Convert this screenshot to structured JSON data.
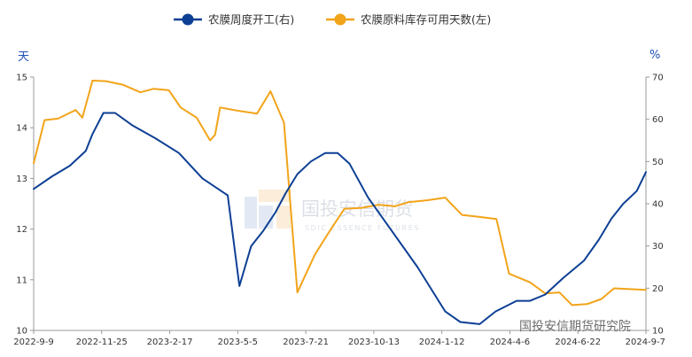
{
  "chart_data": {
    "type": "line",
    "left_axis": {
      "unit": "天",
      "ylim": [
        10,
        15
      ],
      "ticks": [
        "10",
        "11",
        "12",
        "13",
        "14",
        "15"
      ]
    },
    "right_axis": {
      "unit": "%",
      "ylim": [
        10,
        70
      ],
      "ticks": [
        "10",
        "20",
        "30",
        "40",
        "50",
        "60",
        "70"
      ]
    },
    "x_tick_labels": [
      "2022-9-9",
      "2022-11-25",
      "2023-2-17",
      "2023-5-5",
      "2023-7-21",
      "2023-10-13",
      "2024-1-12",
      "2024-4-6",
      "2024-6-22",
      "2024-9-7"
    ],
    "x_range": [
      "2022-09-09",
      "2024-09-07"
    ],
    "grid": false,
    "legend_position": "top-center",
    "series": [
      {
        "name": "农膜周度开工(右)",
        "axis": "right",
        "color": "#0d3f94",
        "points": [
          [
            "2022-09-09",
            43.5
          ],
          [
            "2022-10-01",
            46.5
          ],
          [
            "2022-10-22",
            49.0
          ],
          [
            "2022-11-10",
            52.5
          ],
          [
            "2022-11-18",
            56.5
          ],
          [
            "2022-12-01",
            61.5
          ],
          [
            "2022-12-15",
            61.5
          ],
          [
            "2023-01-05",
            58.5
          ],
          [
            "2023-02-01",
            55.5
          ],
          [
            "2023-03-01",
            52.0
          ],
          [
            "2023-03-29",
            46.0
          ],
          [
            "2023-04-28",
            42.0
          ],
          [
            "2023-05-12",
            20.5
          ],
          [
            "2023-05-26",
            30.0
          ],
          [
            "2023-06-09",
            33.5
          ],
          [
            "2023-06-24",
            38.0
          ],
          [
            "2023-07-06",
            42.5
          ],
          [
            "2023-07-20",
            47.0
          ],
          [
            "2023-08-05",
            50.0
          ],
          [
            "2023-08-22",
            52.0
          ],
          [
            "2023-09-06",
            52.0
          ],
          [
            "2023-09-20",
            49.5
          ],
          [
            "2023-10-12",
            41.5
          ],
          [
            "2023-11-06",
            34.5
          ],
          [
            "2023-12-10",
            25.0
          ],
          [
            "2024-01-12",
            14.5
          ],
          [
            "2024-01-30",
            12.0
          ],
          [
            "2024-02-22",
            11.5
          ],
          [
            "2024-03-12",
            14.5
          ],
          [
            "2024-04-06",
            17.0
          ],
          [
            "2024-04-22",
            17.0
          ],
          [
            "2024-05-10",
            18.5
          ],
          [
            "2024-06-01",
            22.5
          ],
          [
            "2024-06-25",
            26.5
          ],
          [
            "2024-07-13",
            31.5
          ],
          [
            "2024-07-28",
            36.5
          ],
          [
            "2024-08-11",
            40.0
          ],
          [
            "2024-08-27",
            43.0
          ],
          [
            "2024-09-07",
            47.5
          ]
        ]
      },
      {
        "name": "农膜原料库存可用天数(左)",
        "axis": "left",
        "color": "#f2a41a",
        "points": [
          [
            "2022-09-09",
            13.3
          ],
          [
            "2022-09-22",
            14.15
          ],
          [
            "2022-10-08",
            14.18
          ],
          [
            "2022-10-29",
            14.35
          ],
          [
            "2022-11-06",
            14.2
          ],
          [
            "2022-11-18",
            14.93
          ],
          [
            "2022-12-04",
            14.92
          ],
          [
            "2022-12-24",
            14.85
          ],
          [
            "2023-01-14",
            14.7
          ],
          [
            "2023-01-30",
            14.77
          ],
          [
            "2023-02-17",
            14.74
          ],
          [
            "2023-03-03",
            14.4
          ],
          [
            "2023-03-22",
            14.2
          ],
          [
            "2023-04-07",
            13.75
          ],
          [
            "2023-04-13",
            13.86
          ],
          [
            "2023-04-19",
            14.4
          ],
          [
            "2023-05-12",
            14.33
          ],
          [
            "2023-06-02",
            14.28
          ],
          [
            "2023-06-18",
            14.72
          ],
          [
            "2023-07-04",
            14.1
          ],
          [
            "2023-07-20",
            10.75
          ],
          [
            "2023-08-10",
            11.5
          ],
          [
            "2023-08-29",
            12.0
          ],
          [
            "2023-09-14",
            12.4
          ],
          [
            "2023-10-05",
            12.42
          ],
          [
            "2023-10-25",
            12.48
          ],
          [
            "2023-11-13",
            12.45
          ],
          [
            "2023-11-29",
            12.53
          ],
          [
            "2023-12-22",
            12.57
          ],
          [
            "2024-01-12",
            12.62
          ],
          [
            "2024-02-01",
            12.28
          ],
          [
            "2024-02-22",
            12.24
          ],
          [
            "2024-03-13",
            12.2
          ],
          [
            "2024-03-28",
            11.12
          ],
          [
            "2024-04-22",
            10.95
          ],
          [
            "2024-05-10",
            10.73
          ],
          [
            "2024-05-27",
            10.75
          ],
          [
            "2024-06-11",
            10.5
          ],
          [
            "2024-06-29",
            10.52
          ],
          [
            "2024-07-16",
            10.62
          ],
          [
            "2024-07-31",
            10.83
          ],
          [
            "2024-08-14",
            10.82
          ],
          [
            "2024-09-07",
            10.8
          ]
        ]
      }
    ]
  },
  "watermark": {
    "brand_cn": "国投安信期货",
    "brand_en": "SDIC ESSENCE FUTURES"
  },
  "footer_credit": "国投安信期货研究院"
}
